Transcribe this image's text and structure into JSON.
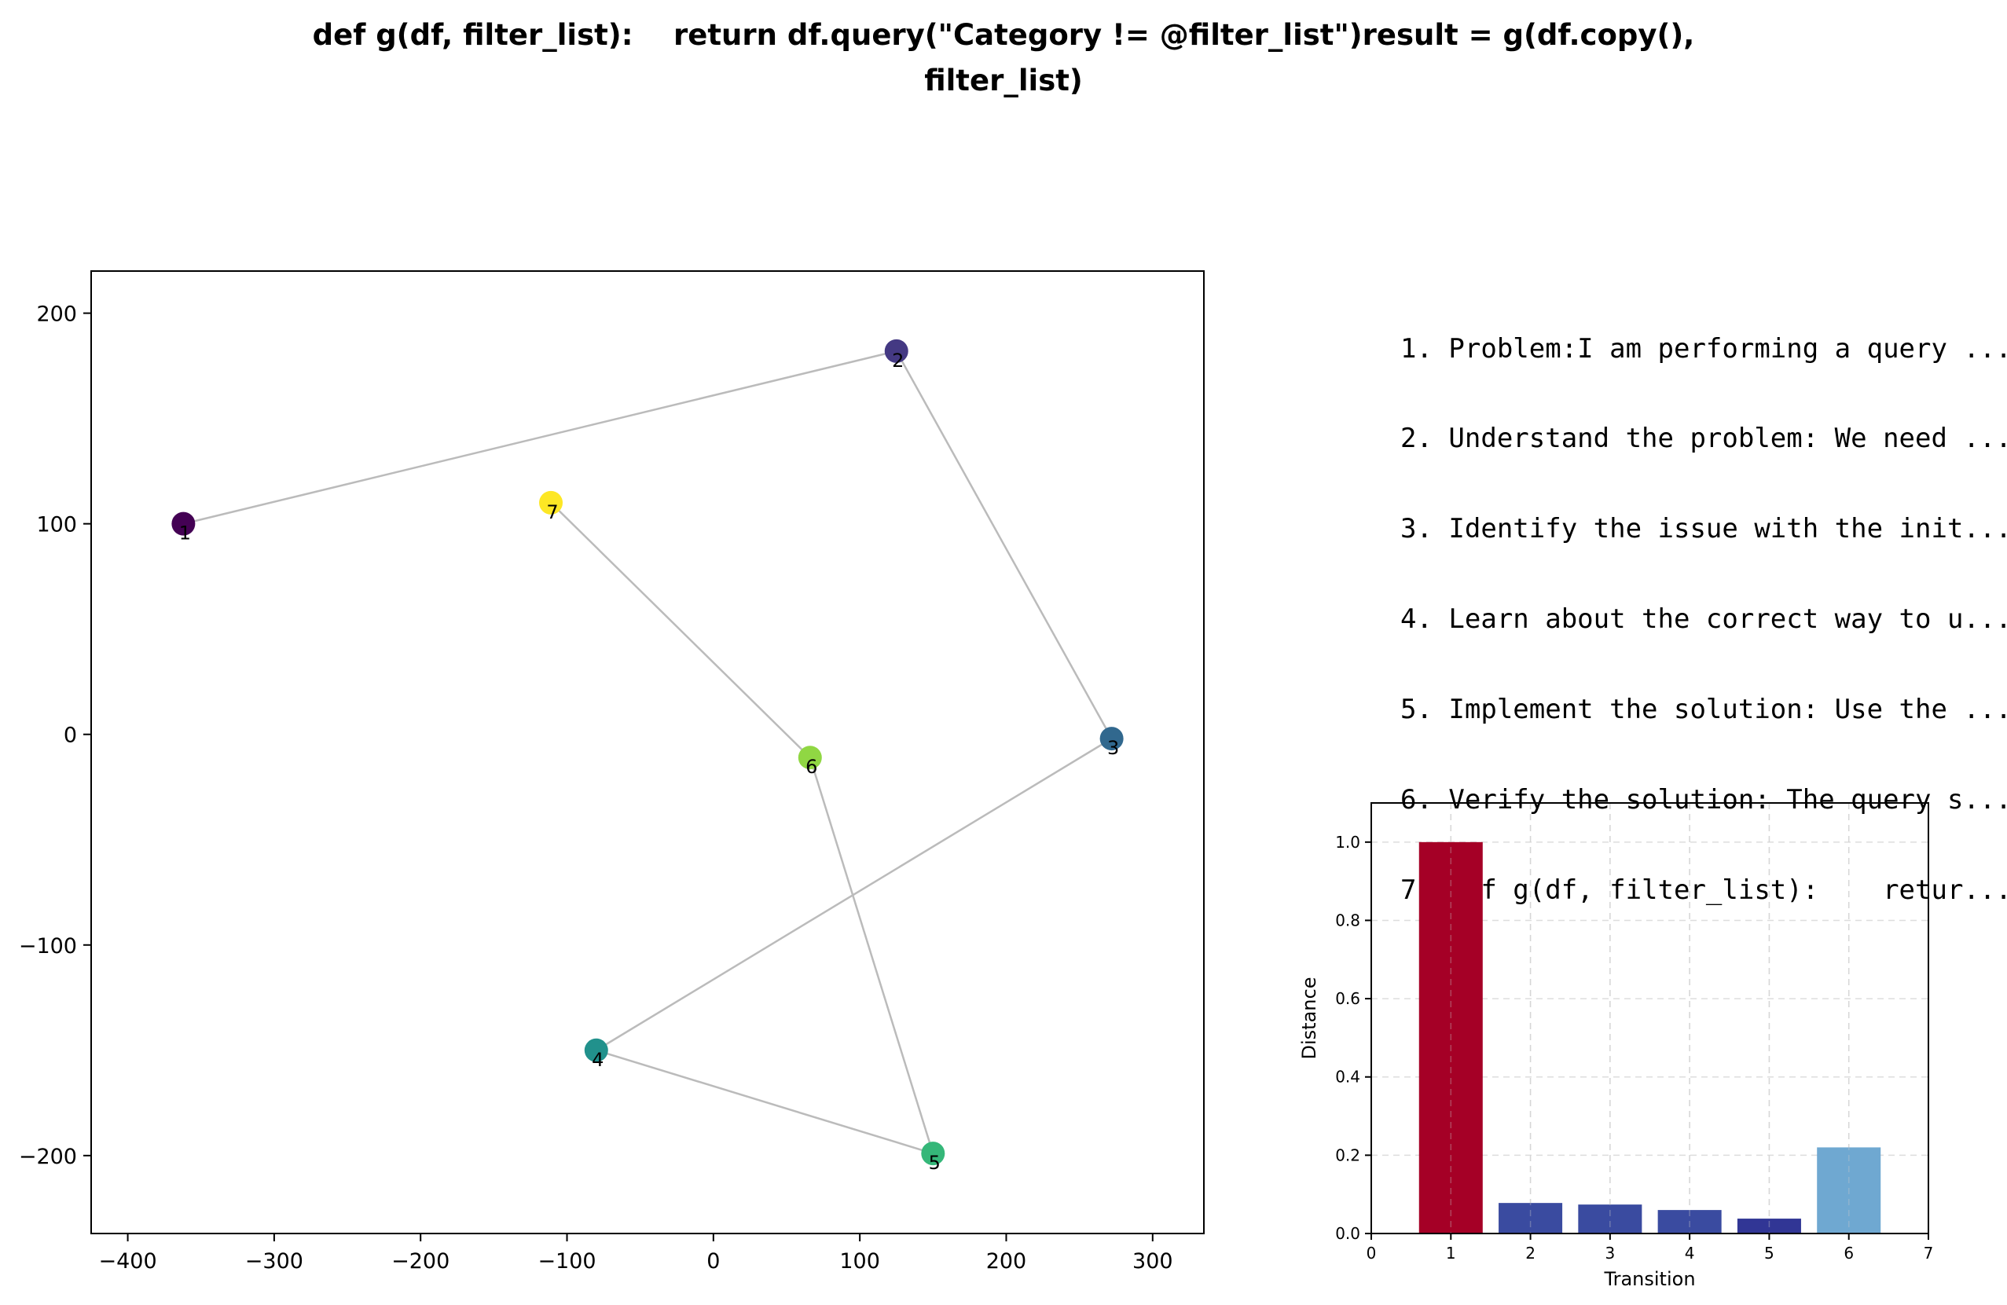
{
  "figure": {
    "title": "def g(df, filter_list):    return df.query(\"Category != @filter_list\")result = g(df.copy(),\nfilter_list)"
  },
  "steps": [
    "1. Problem:I am performing a query ...",
    "2. Understand the problem: We need ...",
    "3. Identify the issue with the init...",
    "4. Learn about the correct way to u...",
    "5. Implement the solution: Use the ...",
    "6. Verify the solution: The query s...",
    "7. def g(df, filter_list):    retur..."
  ],
  "chart_data": [
    {
      "type": "scatter",
      "title": "",
      "xlabel": "",
      "ylabel": "",
      "xlim": [
        -425,
        335
      ],
      "ylim": [
        -237,
        220
      ],
      "xticks": [
        -400,
        -300,
        -200,
        -100,
        0,
        100,
        200,
        300
      ],
      "yticks": [
        -200,
        -100,
        0,
        100,
        200
      ],
      "grid": false,
      "connect_points": true,
      "line_color": "#bbbbbb",
      "points": [
        {
          "label": "1",
          "x": -362,
          "y": 100,
          "color": "#440154"
        },
        {
          "label": "2",
          "x": 125,
          "y": 182,
          "color": "#443983"
        },
        {
          "label": "3",
          "x": 272,
          "y": -2,
          "color": "#31688e"
        },
        {
          "label": "4",
          "x": -80,
          "y": -150,
          "color": "#21918c"
        },
        {
          "label": "5",
          "x": 150,
          "y": -199,
          "color": "#35b779"
        },
        {
          "label": "6",
          "x": 66,
          "y": -11,
          "color": "#90d743"
        },
        {
          "label": "7",
          "x": -111,
          "y": 110,
          "color": "#fde725"
        }
      ]
    },
    {
      "type": "bar",
      "title": "",
      "xlabel": "Transition",
      "ylabel": "Distance",
      "xlim": [
        0,
        7
      ],
      "ylim": [
        0,
        1.1
      ],
      "xticks": [
        0,
        1,
        2,
        3,
        4,
        5,
        6,
        7
      ],
      "yticks": [
        0.0,
        0.2,
        0.4,
        0.6,
        0.8,
        1.0
      ],
      "grid": true,
      "categories": [
        1,
        2,
        3,
        4,
        5,
        6
      ],
      "values": [
        1.0,
        0.078,
        0.074,
        0.06,
        0.038,
        0.22
      ],
      "colors": [
        "#a50026",
        "#3a4ba0",
        "#3a4ba0",
        "#3a4ba0",
        "#313695",
        "#6fa8d1"
      ]
    }
  ]
}
